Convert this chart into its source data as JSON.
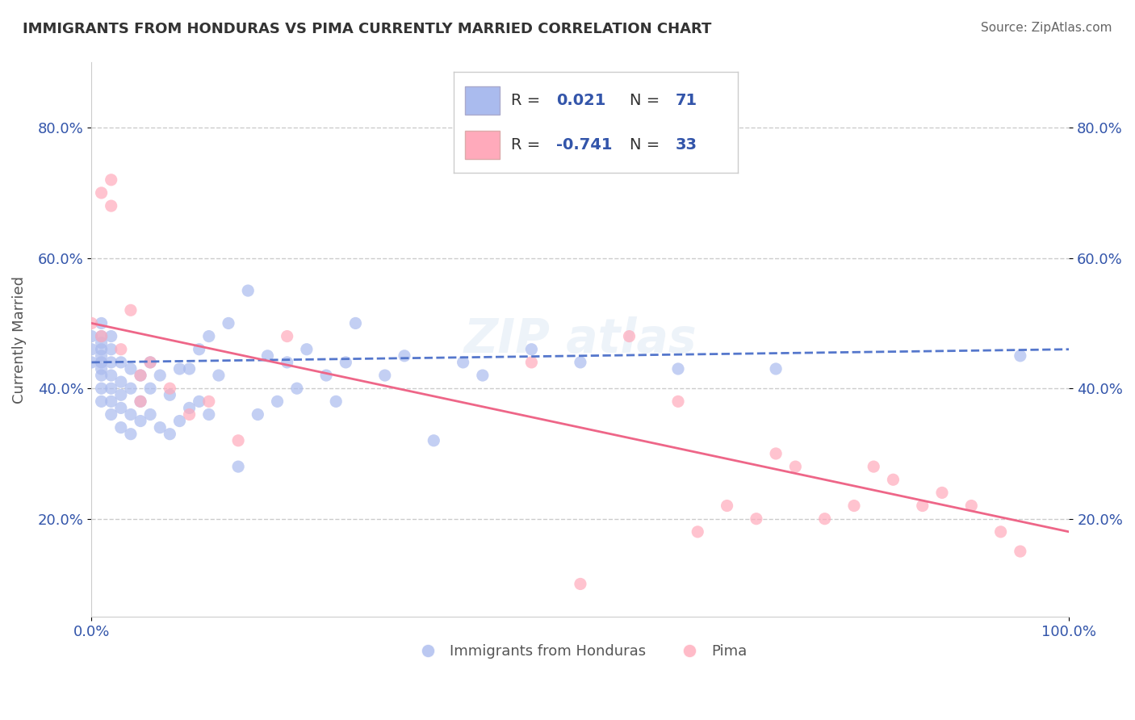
{
  "title": "IMMIGRANTS FROM HONDURAS VS PIMA CURRENTLY MARRIED CORRELATION CHART",
  "source_text": "Source: ZipAtlas.com",
  "xlabel": "",
  "ylabel": "Currently Married",
  "xlim": [
    0.0,
    1.0
  ],
  "ylim": [
    0.05,
    0.9
  ],
  "x_tick_labels": [
    "0.0%",
    "100.0%"
  ],
  "x_ticks": [
    0.0,
    1.0
  ],
  "y_tick_labels": [
    "20.0%",
    "40.0%",
    "60.0%",
    "80.0%"
  ],
  "y_ticks": [
    0.2,
    0.4,
    0.6,
    0.8
  ],
  "grid_color": "#cccccc",
  "background_color": "#ffffff",
  "watermark": "ZIPAtlas",
  "blue_R": 0.021,
  "blue_N": 71,
  "pink_R": -0.741,
  "pink_N": 33,
  "blue_color": "#aabbee",
  "blue_line_color": "#5577cc",
  "pink_color": "#ffaabb",
  "pink_line_color": "#ee6688",
  "blue_scatter_x": [
    0.0,
    0.0,
    0.0,
    0.01,
    0.01,
    0.01,
    0.01,
    0.01,
    0.01,
    0.01,
    0.01,
    0.01,
    0.01,
    0.02,
    0.02,
    0.02,
    0.02,
    0.02,
    0.02,
    0.02,
    0.03,
    0.03,
    0.03,
    0.03,
    0.03,
    0.04,
    0.04,
    0.04,
    0.04,
    0.05,
    0.05,
    0.05,
    0.06,
    0.06,
    0.06,
    0.07,
    0.07,
    0.08,
    0.08,
    0.09,
    0.09,
    0.1,
    0.1,
    0.11,
    0.11,
    0.12,
    0.12,
    0.13,
    0.14,
    0.15,
    0.16,
    0.17,
    0.18,
    0.19,
    0.2,
    0.21,
    0.22,
    0.24,
    0.25,
    0.26,
    0.27,
    0.3,
    0.32,
    0.35,
    0.38,
    0.4,
    0.45,
    0.5,
    0.6,
    0.7,
    0.95
  ],
  "blue_scatter_y": [
    0.44,
    0.46,
    0.48,
    0.38,
    0.4,
    0.42,
    0.43,
    0.44,
    0.45,
    0.46,
    0.47,
    0.48,
    0.5,
    0.36,
    0.38,
    0.4,
    0.42,
    0.44,
    0.46,
    0.48,
    0.34,
    0.37,
    0.39,
    0.41,
    0.44,
    0.33,
    0.36,
    0.4,
    0.43,
    0.35,
    0.38,
    0.42,
    0.36,
    0.4,
    0.44,
    0.34,
    0.42,
    0.33,
    0.39,
    0.35,
    0.43,
    0.37,
    0.43,
    0.38,
    0.46,
    0.36,
    0.48,
    0.42,
    0.5,
    0.28,
    0.55,
    0.36,
    0.45,
    0.38,
    0.44,
    0.4,
    0.46,
    0.42,
    0.38,
    0.44,
    0.5,
    0.42,
    0.45,
    0.32,
    0.44,
    0.42,
    0.46,
    0.44,
    0.43,
    0.43,
    0.45
  ],
  "pink_scatter_x": [
    0.0,
    0.01,
    0.01,
    0.02,
    0.02,
    0.03,
    0.04,
    0.05,
    0.05,
    0.06,
    0.08,
    0.1,
    0.12,
    0.15,
    0.2,
    0.45,
    0.5,
    0.55,
    0.6,
    0.62,
    0.65,
    0.68,
    0.7,
    0.72,
    0.75,
    0.78,
    0.8,
    0.82,
    0.85,
    0.87,
    0.9,
    0.93,
    0.95
  ],
  "pink_scatter_y": [
    0.5,
    0.48,
    0.7,
    0.68,
    0.72,
    0.46,
    0.52,
    0.42,
    0.38,
    0.44,
    0.4,
    0.36,
    0.38,
    0.32,
    0.48,
    0.44,
    0.1,
    0.48,
    0.38,
    0.18,
    0.22,
    0.2,
    0.3,
    0.28,
    0.2,
    0.22,
    0.28,
    0.26,
    0.22,
    0.24,
    0.22,
    0.18,
    0.15
  ],
  "blue_trend_x": [
    0.0,
    1.0
  ],
  "blue_trend_y": [
    0.44,
    0.46
  ],
  "pink_trend_x": [
    0.0,
    1.0
  ],
  "pink_trend_y": [
    0.5,
    0.18
  ],
  "legend_label_blue": "Immigrants from Honduras",
  "legend_label_pink": "Pima",
  "title_color": "#333333",
  "source_color": "#666666",
  "axis_label_color": "#555555",
  "tick_label_color": "#3355aa",
  "R_value_color": "#3355aa",
  "R_label_color": "#333333"
}
